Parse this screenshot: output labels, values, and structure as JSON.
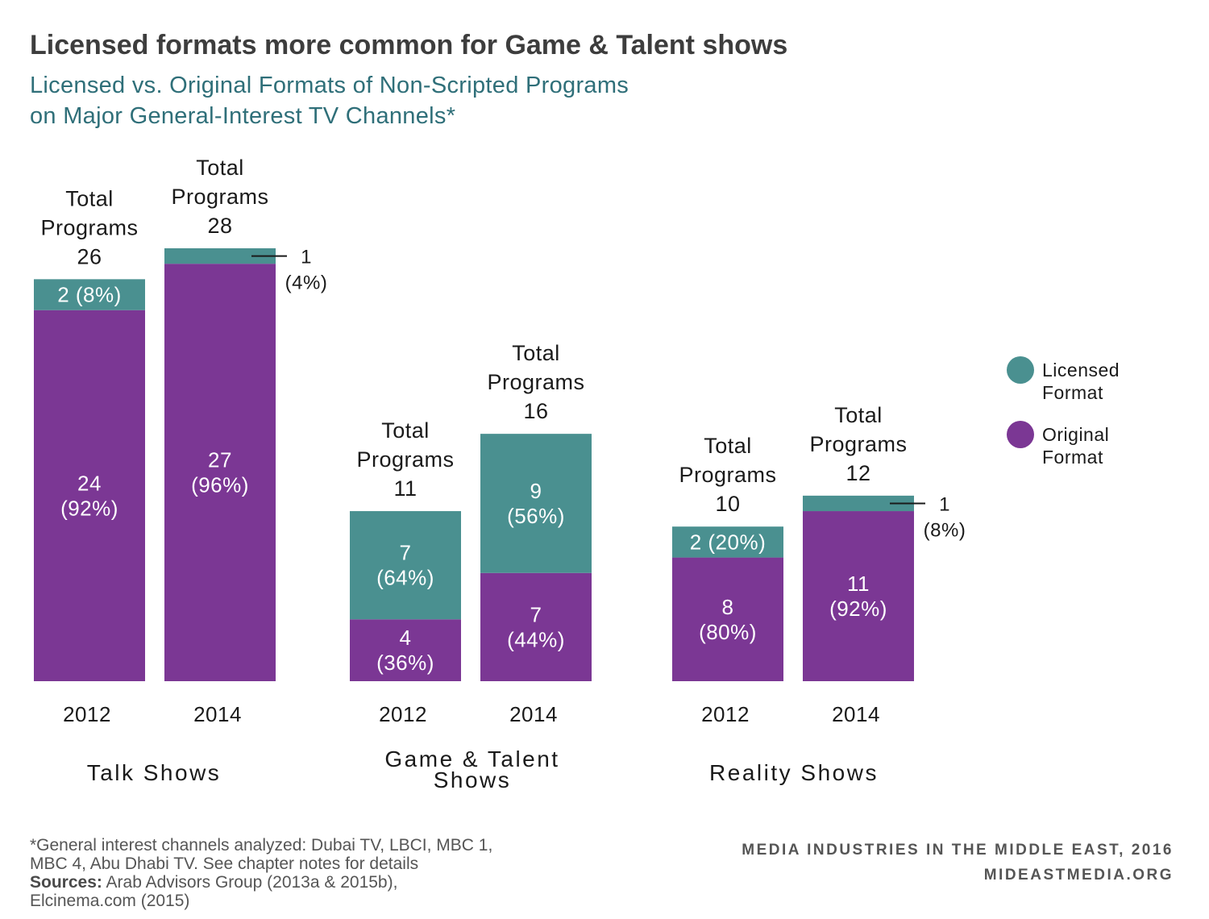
{
  "title": "Licensed formats more common for Game & Talent shows",
  "subtitle_lines": [
    "Licensed vs. Original Formats of Non-Scripted Programs",
    "on Major General-Interest TV Channels*"
  ],
  "colors": {
    "licensed": "#4a9090",
    "original": "#7b3794",
    "title": "#3d3d3d",
    "subtitle": "#2f6f79"
  },
  "legend": {
    "placement": "right",
    "items": [
      {
        "key": "licensed",
        "lines": [
          "Licensed",
          "Format"
        ]
      },
      {
        "key": "original",
        "lines": [
          "Original",
          "Format"
        ]
      }
    ]
  },
  "chart_data": {
    "type": "bar",
    "stacked": true,
    "ylim": [
      0,
      28
    ],
    "grid": false,
    "groups": [
      {
        "name_lines": [
          "Talk Shows"
        ],
        "bars": [
          {
            "year": "2012",
            "original": 24,
            "licensed": 2,
            "total_lines": [
              "Total",
              "Programs",
              "26"
            ],
            "original_label": [
              "24",
              "(92%)"
            ],
            "licensed_label": [
              "2 (8%)"
            ],
            "licensed_callout": false
          },
          {
            "year": "2014",
            "original": 27,
            "licensed": 1,
            "total_lines": [
              "Total",
              "Programs",
              "28"
            ],
            "original_label": [
              "27",
              "(96%)"
            ],
            "licensed_label": [
              "1",
              "(4%)"
            ],
            "licensed_callout": true
          }
        ]
      },
      {
        "name_lines": [
          "Game & Talent",
          "Shows"
        ],
        "bars": [
          {
            "year": "2012",
            "original": 4,
            "licensed": 7,
            "total_lines": [
              "Total",
              "Programs",
              "11"
            ],
            "original_label": [
              "4",
              "(36%)"
            ],
            "licensed_label": [
              "7",
              "(64%)"
            ],
            "licensed_callout": false
          },
          {
            "year": "2014",
            "original": 7,
            "licensed": 9,
            "total_lines": [
              "Total",
              "Programs",
              "16"
            ],
            "original_label": [
              "7",
              "(44%)"
            ],
            "licensed_label": [
              "9",
              "(56%)"
            ],
            "licensed_callout": false
          }
        ]
      },
      {
        "name_lines": [
          "Reality Shows"
        ],
        "bars": [
          {
            "year": "2012",
            "original": 8,
            "licensed": 2,
            "total_lines": [
              "Total",
              "Programs",
              "10"
            ],
            "original_label": [
              "8",
              "(80%)"
            ],
            "licensed_label": [
              "2 (20%)"
            ],
            "licensed_callout": false
          },
          {
            "year": "2014",
            "original": 11,
            "licensed": 1,
            "total_lines": [
              "Total",
              "Programs",
              "12"
            ],
            "original_label": [
              "11",
              "(92%)"
            ],
            "licensed_label": [
              "1",
              "(8%)"
            ],
            "licensed_callout": true
          }
        ]
      }
    ]
  },
  "footnote": {
    "lines": [
      "*General interest channels analyzed: Dubai TV, LBCI, MBC 1,",
      "MBC 4, Abu Dhabi TV. See chapter notes for details"
    ],
    "sources_label": "Sources:",
    "sources_lines": [
      " Arab Advisors Group (2013a & 2015b),",
      "Elcinema.com (2015)"
    ]
  },
  "credit": {
    "line1": "MEDIA INDUSTRIES IN THE MIDDLE EAST, 2016",
    "line2": "MIDEASTMEDIA.ORG"
  }
}
